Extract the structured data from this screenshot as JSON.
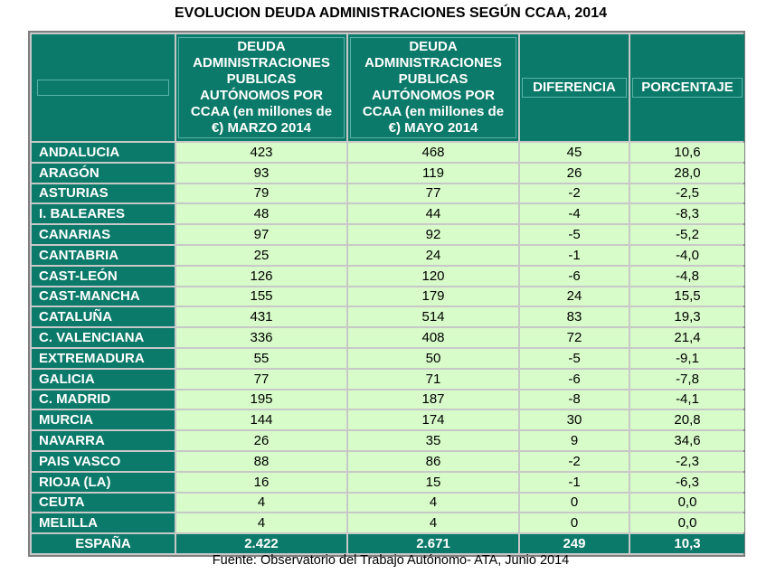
{
  "title": "EVOLUCION DEUDA ADMINISTRACIONES SEGÚN CCAA, 2014",
  "headers": {
    "corner": "",
    "col1": [
      "DEUDA",
      "ADMINISTRACIONES",
      "PUBLICAS",
      "AUTÓNOMOS POR",
      "CCAA (en millones de",
      "€) MARZO 2014"
    ],
    "col2": [
      "DEUDA",
      "ADMINISTRACIONES",
      "PUBLICAS",
      "AUTÓNOMOS POR",
      "CCAA (en millones de",
      "€) MAYO 2014"
    ],
    "col3": "DIFERENCIA",
    "col4": "PORCENTAJE"
  },
  "rows": [
    {
      "name": "ANDALUCIA",
      "marzo": "423",
      "mayo": "468",
      "diferencia": "45",
      "porcentaje": "10,6"
    },
    {
      "name": "ARAGÓN",
      "marzo": "93",
      "mayo": "119",
      "diferencia": "26",
      "porcentaje": "28,0"
    },
    {
      "name": "ASTURIAS",
      "marzo": "79",
      "mayo": "77",
      "diferencia": "-2",
      "porcentaje": "-2,5"
    },
    {
      "name": "I. BALEARES",
      "marzo": "48",
      "mayo": "44",
      "diferencia": "-4",
      "porcentaje": "-8,3"
    },
    {
      "name": "CANARIAS",
      "marzo": "97",
      "mayo": "92",
      "diferencia": "-5",
      "porcentaje": "-5,2"
    },
    {
      "name": "CANTABRIA",
      "marzo": "25",
      "mayo": "24",
      "diferencia": "-1",
      "porcentaje": "-4,0"
    },
    {
      "name": "CAST-LEÓN",
      "marzo": "126",
      "mayo": "120",
      "diferencia": "-6",
      "porcentaje": "-4,8"
    },
    {
      "name": "CAST-MANCHA",
      "marzo": "155",
      "mayo": "179",
      "diferencia": "24",
      "porcentaje": "15,5"
    },
    {
      "name": "CATALUÑA",
      "marzo": "431",
      "mayo": "514",
      "diferencia": "83",
      "porcentaje": "19,3"
    },
    {
      "name": "C. VALENCIANA",
      "marzo": "336",
      "mayo": "408",
      "diferencia": "72",
      "porcentaje": "21,4"
    },
    {
      "name": "EXTREMADURA",
      "marzo": "55",
      "mayo": "50",
      "diferencia": "-5",
      "porcentaje": "-9,1"
    },
    {
      "name": "GALICIA",
      "marzo": "77",
      "mayo": "71",
      "diferencia": "-6",
      "porcentaje": "-7,8"
    },
    {
      "name": "C. MADRID",
      "marzo": "195",
      "mayo": "187",
      "diferencia": "-8",
      "porcentaje": "-4,1"
    },
    {
      "name": "MURCIA",
      "marzo": "144",
      "mayo": "174",
      "diferencia": "30",
      "porcentaje": "20,8"
    },
    {
      "name": "NAVARRA",
      "marzo": "26",
      "mayo": "35",
      "diferencia": "9",
      "porcentaje": "34,6"
    },
    {
      "name": "PAIS VASCO",
      "marzo": "88",
      "mayo": "86",
      "diferencia": "-2",
      "porcentaje": "-2,3"
    },
    {
      "name": "RIOJA (LA)",
      "marzo": "16",
      "mayo": "15",
      "diferencia": "-1",
      "porcentaje": "-6,3"
    },
    {
      "name": "CEUTA",
      "marzo": "4",
      "mayo": "4",
      "diferencia": "0",
      "porcentaje": "0,0"
    },
    {
      "name": "MELILLA",
      "marzo": "4",
      "mayo": "4",
      "diferencia": "0",
      "porcentaje": "0,0"
    }
  ],
  "total": {
    "name": "ESPAÑA",
    "marzo": "2.422",
    "mayo": "2.671",
    "diferencia": "249",
    "porcentaje": "10,3"
  },
  "source": "Fuente: Observatorio del Trabajo Autónomo- ATA, Junio 2014",
  "colors": {
    "header_bg": "#0c7a6a",
    "cell_bg": "#d7fbc9",
    "border": "#7f7f7f"
  }
}
